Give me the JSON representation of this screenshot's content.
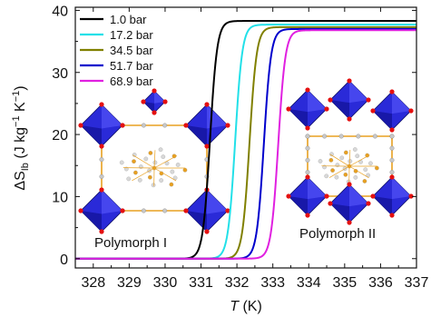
{
  "chart_data": {
    "type": "line",
    "title": "",
    "xlabel": {
      "symbol": "T",
      "unit": " (K)"
    },
    "ylabel": {
      "symbol": "ΔS",
      "subscript": "Ib",
      "unit_prefix": " (J kg",
      "sup1": "−1",
      "unit_mid": " K",
      "sup2": "−1",
      "unit_suffix": ")"
    },
    "xlim": [
      327.5,
      337
    ],
    "ylim": [
      -1.5,
      40.5
    ],
    "x_ticks": [
      328,
      329,
      330,
      331,
      332,
      333,
      334,
      335,
      336,
      337
    ],
    "y_ticks": [
      0,
      10,
      20,
      30,
      40
    ],
    "grid": false,
    "legend_position": "top-left",
    "series": [
      {
        "name": "1.0 bar",
        "color": "#000000",
        "onset_T": 330.85,
        "plateau_dS": 38.3
      },
      {
        "name": "17.2 bar",
        "color": "#22e0e8",
        "onset_T": 331.55,
        "plateau_dS": 37.7
      },
      {
        "name": "34.5 bar",
        "color": "#808000",
        "onset_T": 331.95,
        "plateau_dS": 37.3
      },
      {
        "name": "51.7 bar",
        "color": "#0000cc",
        "onset_T": 332.35,
        "plateau_dS": 37.0
      },
      {
        "name": "68.9 bar",
        "color": "#e020e0",
        "onset_T": 332.75,
        "plateau_dS": 36.8
      }
    ],
    "annotations": [
      {
        "text": "Polymorph I",
        "anchor": "bottom-left"
      },
      {
        "text": "Polymorph II",
        "anchor": "bottom-right"
      }
    ]
  }
}
